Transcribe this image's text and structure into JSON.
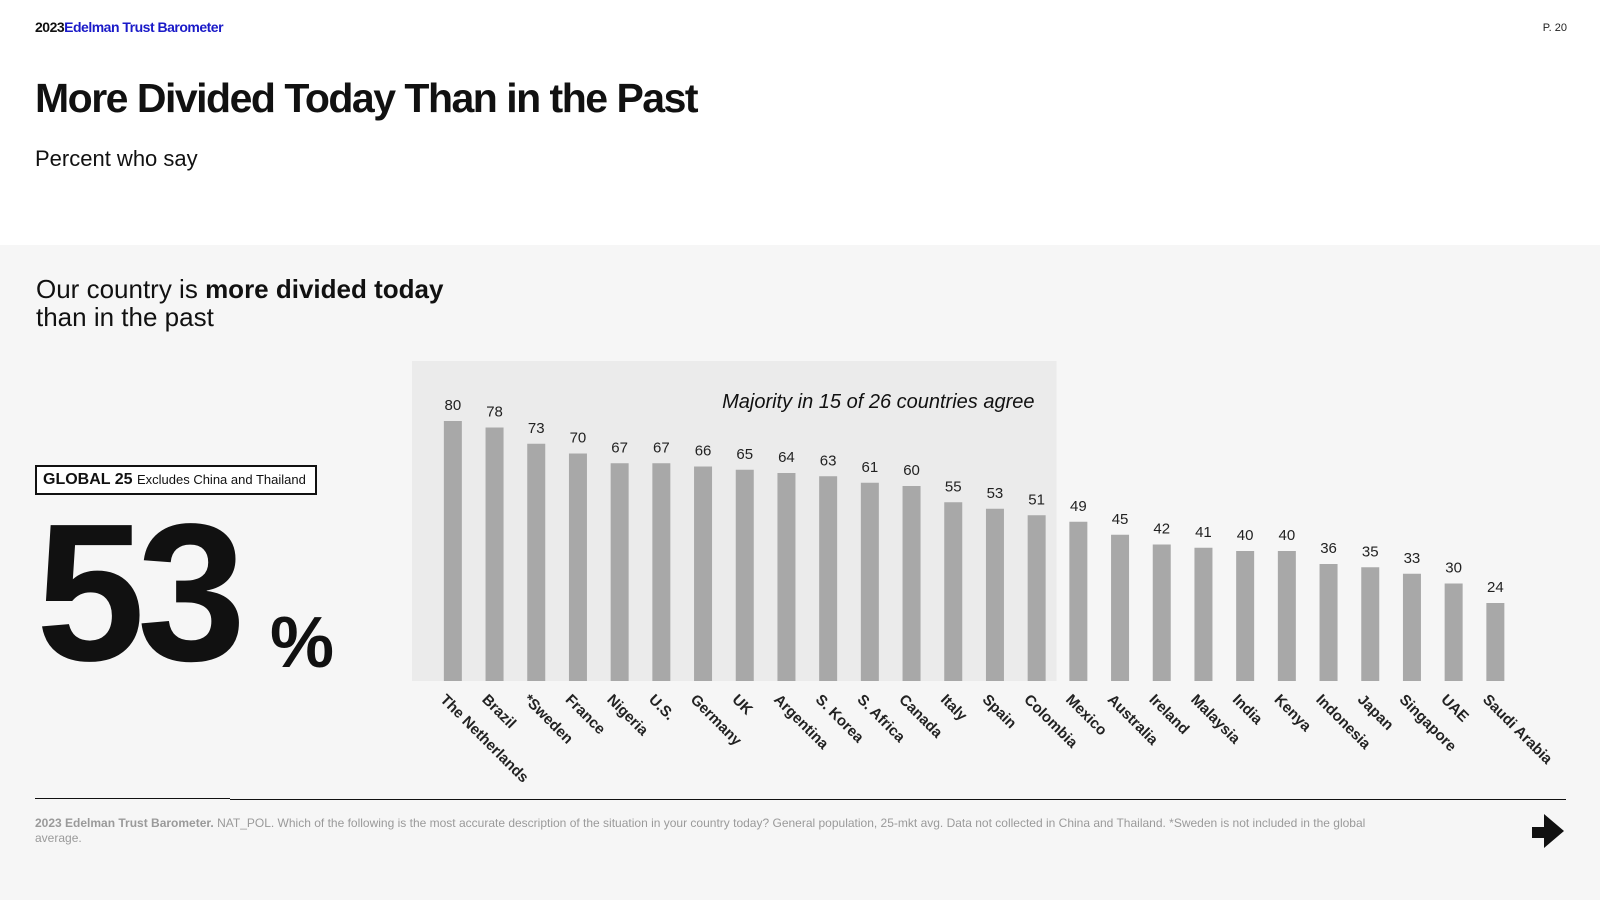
{
  "header": {
    "year": "2023",
    "brand": "Edelman Trust Barometer",
    "page": "P. 20"
  },
  "title": "More Divided Today Than in the Past",
  "subtitle": "Percent who say",
  "statement": {
    "pre": "Our country is ",
    "bold": "more divided today",
    "post": "than in the past"
  },
  "global": {
    "label": "GLOBAL 25",
    "note": "Excludes China and Thailand",
    "value": "53",
    "unit": "%"
  },
  "footnote": {
    "source": "2023 Edelman Trust Barometer.",
    "text": "NAT_POL. Which of the following is the most accurate description of the situation in your country today? General population, 25-mkt avg. Data not collected in China and Thailand. *Sweden is not included in the global average."
  },
  "colors": {
    "bar": "#a8a8a8",
    "highlight": "#ebebeb",
    "panel": "#f6f6f6",
    "brand": "#1a1ac8"
  },
  "chart_data": {
    "type": "bar",
    "annotation": "Majority in 15 of 26 countries agree",
    "highlight_count": 15,
    "ylim": [
      0,
      100
    ],
    "categories": [
      "The Netherlands",
      "Brazil",
      "*Sweden",
      "France",
      "Nigeria",
      "U.S.",
      "Germany",
      "UK",
      "Argentina",
      "S. Korea",
      "S. Africa",
      "Canada",
      "Italy",
      "Spain",
      "Colombia",
      "Mexico",
      "Australia",
      "Ireland",
      "Malaysia",
      "India",
      "Kenya",
      "Indonesia",
      "Japan",
      "Singapore",
      "UAE",
      "Saudi Arabia"
    ],
    "values": [
      80,
      78,
      73,
      70,
      67,
      67,
      66,
      65,
      64,
      63,
      61,
      60,
      55,
      53,
      51,
      49,
      45,
      42,
      41,
      40,
      40,
      36,
      35,
      33,
      30,
      24
    ]
  }
}
